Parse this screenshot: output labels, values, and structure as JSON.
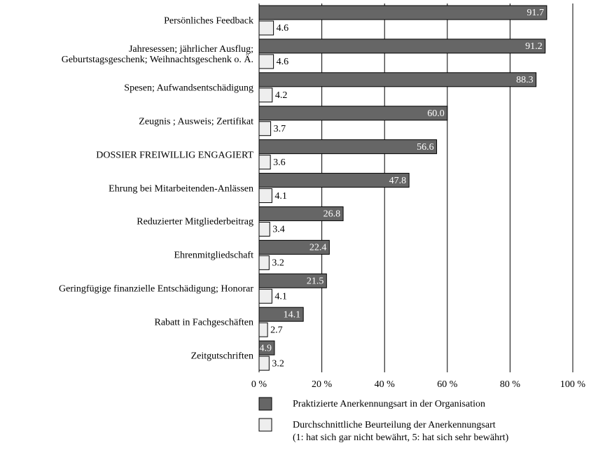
{
  "chart_data": {
    "type": "hbar",
    "categories": [
      "Persönliches Feedback",
      "Jahresessen; jährlicher Ausflug;\nGeburtstagsgeschenk; Weihnachtsgeschenk o. Ä.",
      "Spesen; Aufwandsentschädigung",
      "Zeugnis ; Ausweis; Zertifikat",
      "DOSSIER FREIWILLIG ENGAGIERT",
      "Ehrung bei Mitarbeitenden-Anlässen",
      "Reduzierter Mitgliederbeitrag",
      "Ehrenmitgliedschaft",
      "Geringfügige finanzielle Entschädigung; Honorar",
      "Rabatt in Fachgeschäften",
      "Zeitgutschriften"
    ],
    "series": [
      {
        "name": "Praktizierte Anerkennungsart in der Organisation",
        "color": "#666666",
        "values": [
          91.7,
          91.2,
          88.3,
          60.0,
          56.6,
          47.8,
          26.8,
          22.4,
          21.5,
          14.1,
          4.9
        ],
        "value_labels": [
          "91.7",
          "91.2",
          "88.3",
          "60.0",
          "56.6",
          "47.8",
          "26.8",
          "22.4",
          "21.5",
          "14.1",
          "4.9"
        ]
      },
      {
        "name": "Durchschnittliche Beurteilung der Anerkennungsart",
        "color": "#eeeeee",
        "values": [
          4.6,
          4.6,
          4.2,
          3.7,
          3.6,
          4.1,
          3.4,
          3.2,
          4.1,
          2.7,
          3.2
        ],
        "value_labels": [
          "4.6",
          "4.6",
          "4.2",
          "3.7",
          "3.6",
          "4.1",
          "3.4",
          "3.2",
          "4.1",
          "2.7",
          "3.2"
        ]
      }
    ],
    "note": "(1: hat sich gar nicht bewährt, 5: hat sich sehr bewährt)",
    "xlim": [
      0,
      100
    ],
    "xticks": [
      {
        "value": 0,
        "label": "0 %"
      },
      {
        "value": 20,
        "label": "20 %"
      },
      {
        "value": 40,
        "label": "40 %"
      },
      {
        "value": 60,
        "label": "60 %"
      },
      {
        "value": 80,
        "label": "80 %"
      },
      {
        "value": 100,
        "label": "100 %"
      }
    ],
    "grid": true
  }
}
